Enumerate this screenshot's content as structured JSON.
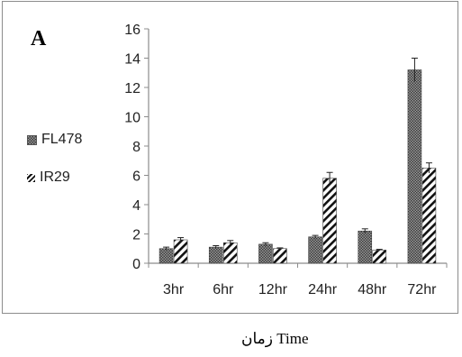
{
  "panel_label": "A",
  "colors": {
    "axis": "#8c8c8c",
    "bar_fill": "#777777",
    "bar_stroke": "#333333"
  },
  "chart_data": {
    "type": "bar",
    "categories": [
      "3hr",
      "6hr",
      "12hr",
      "24hr",
      "48hr",
      "72hr"
    ],
    "series": [
      {
        "name": "FL478",
        "pattern": "crosshatch",
        "values": [
          1.0,
          1.1,
          1.3,
          1.8,
          2.2,
          13.2
        ],
        "errors": [
          0.1,
          0.1,
          0.1,
          0.1,
          0.15,
          0.8
        ]
      },
      {
        "name": "IR29",
        "pattern": "diagonal-stripes",
        "values": [
          1.6,
          1.4,
          1.0,
          5.8,
          0.9,
          6.5
        ],
        "errors": [
          0.15,
          0.15,
          0.05,
          0.4,
          0.05,
          0.35
        ]
      }
    ],
    "yticks": [
      "0",
      "2",
      "4",
      "6",
      "8",
      "10",
      "12",
      "14",
      "16"
    ],
    "ylim": [
      0,
      16
    ],
    "xlabel": "زمان    Time",
    "legend_position": "left",
    "grid": false
  }
}
